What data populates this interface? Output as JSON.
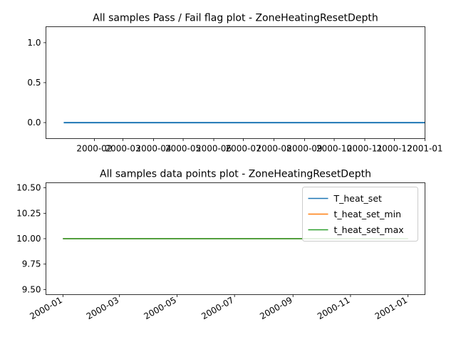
{
  "chart_data": [
    {
      "type": "line",
      "title": "All samples Pass / Fail flag plot - ZoneHeatingResetDepth",
      "xlabel": "",
      "ylabel": "",
      "x_range": [
        "2000-01-01",
        "2001-01-01"
      ],
      "xticks": [
        "2000-02",
        "2000-03",
        "2000-04",
        "2000-05",
        "2000-06",
        "2000-07",
        "2000-08",
        "2000-09",
        "2000-10",
        "2000-11",
        "2000-12",
        "2001-01"
      ],
      "ylim": [
        -0.2,
        1.2
      ],
      "yticks": [
        "0.0",
        "0.5",
        "1.0"
      ],
      "grid": false,
      "series": [
        {
          "color": "#1f77b4",
          "x": [
            "2000-01-01",
            "2001-01-01"
          ],
          "y": [
            0,
            0
          ]
        }
      ]
    },
    {
      "type": "line",
      "title": "All samples data points plot - ZoneHeatingResetDepth",
      "xlabel": "",
      "ylabel": "",
      "x_range": [
        "2000-01-01",
        "2001-01-01"
      ],
      "xticks": [
        "2000-01",
        "2000-03",
        "2000-05",
        "2000-07",
        "2000-09",
        "2000-11",
        "2001-01"
      ],
      "ylim": [
        9.45,
        10.55
      ],
      "yticks": [
        "9.50",
        "9.75",
        "10.00",
        "10.25",
        "10.50"
      ],
      "grid": false,
      "legend": "top-right",
      "series": [
        {
          "name": "T_heat_set",
          "color": "#1f77b4",
          "x": [
            "2000-01-01",
            "2001-01-01"
          ],
          "y": [
            10,
            10
          ]
        },
        {
          "name": "t_heat_set_min",
          "color": "#ff7f0e",
          "x": [
            "2000-01-01",
            "2001-01-01"
          ],
          "y": [
            10,
            10
          ]
        },
        {
          "name": "t_heat_set_max",
          "color": "#2ca02c",
          "x": [
            "2000-01-01",
            "2001-01-01"
          ],
          "y": [
            10,
            10
          ]
        }
      ]
    }
  ]
}
